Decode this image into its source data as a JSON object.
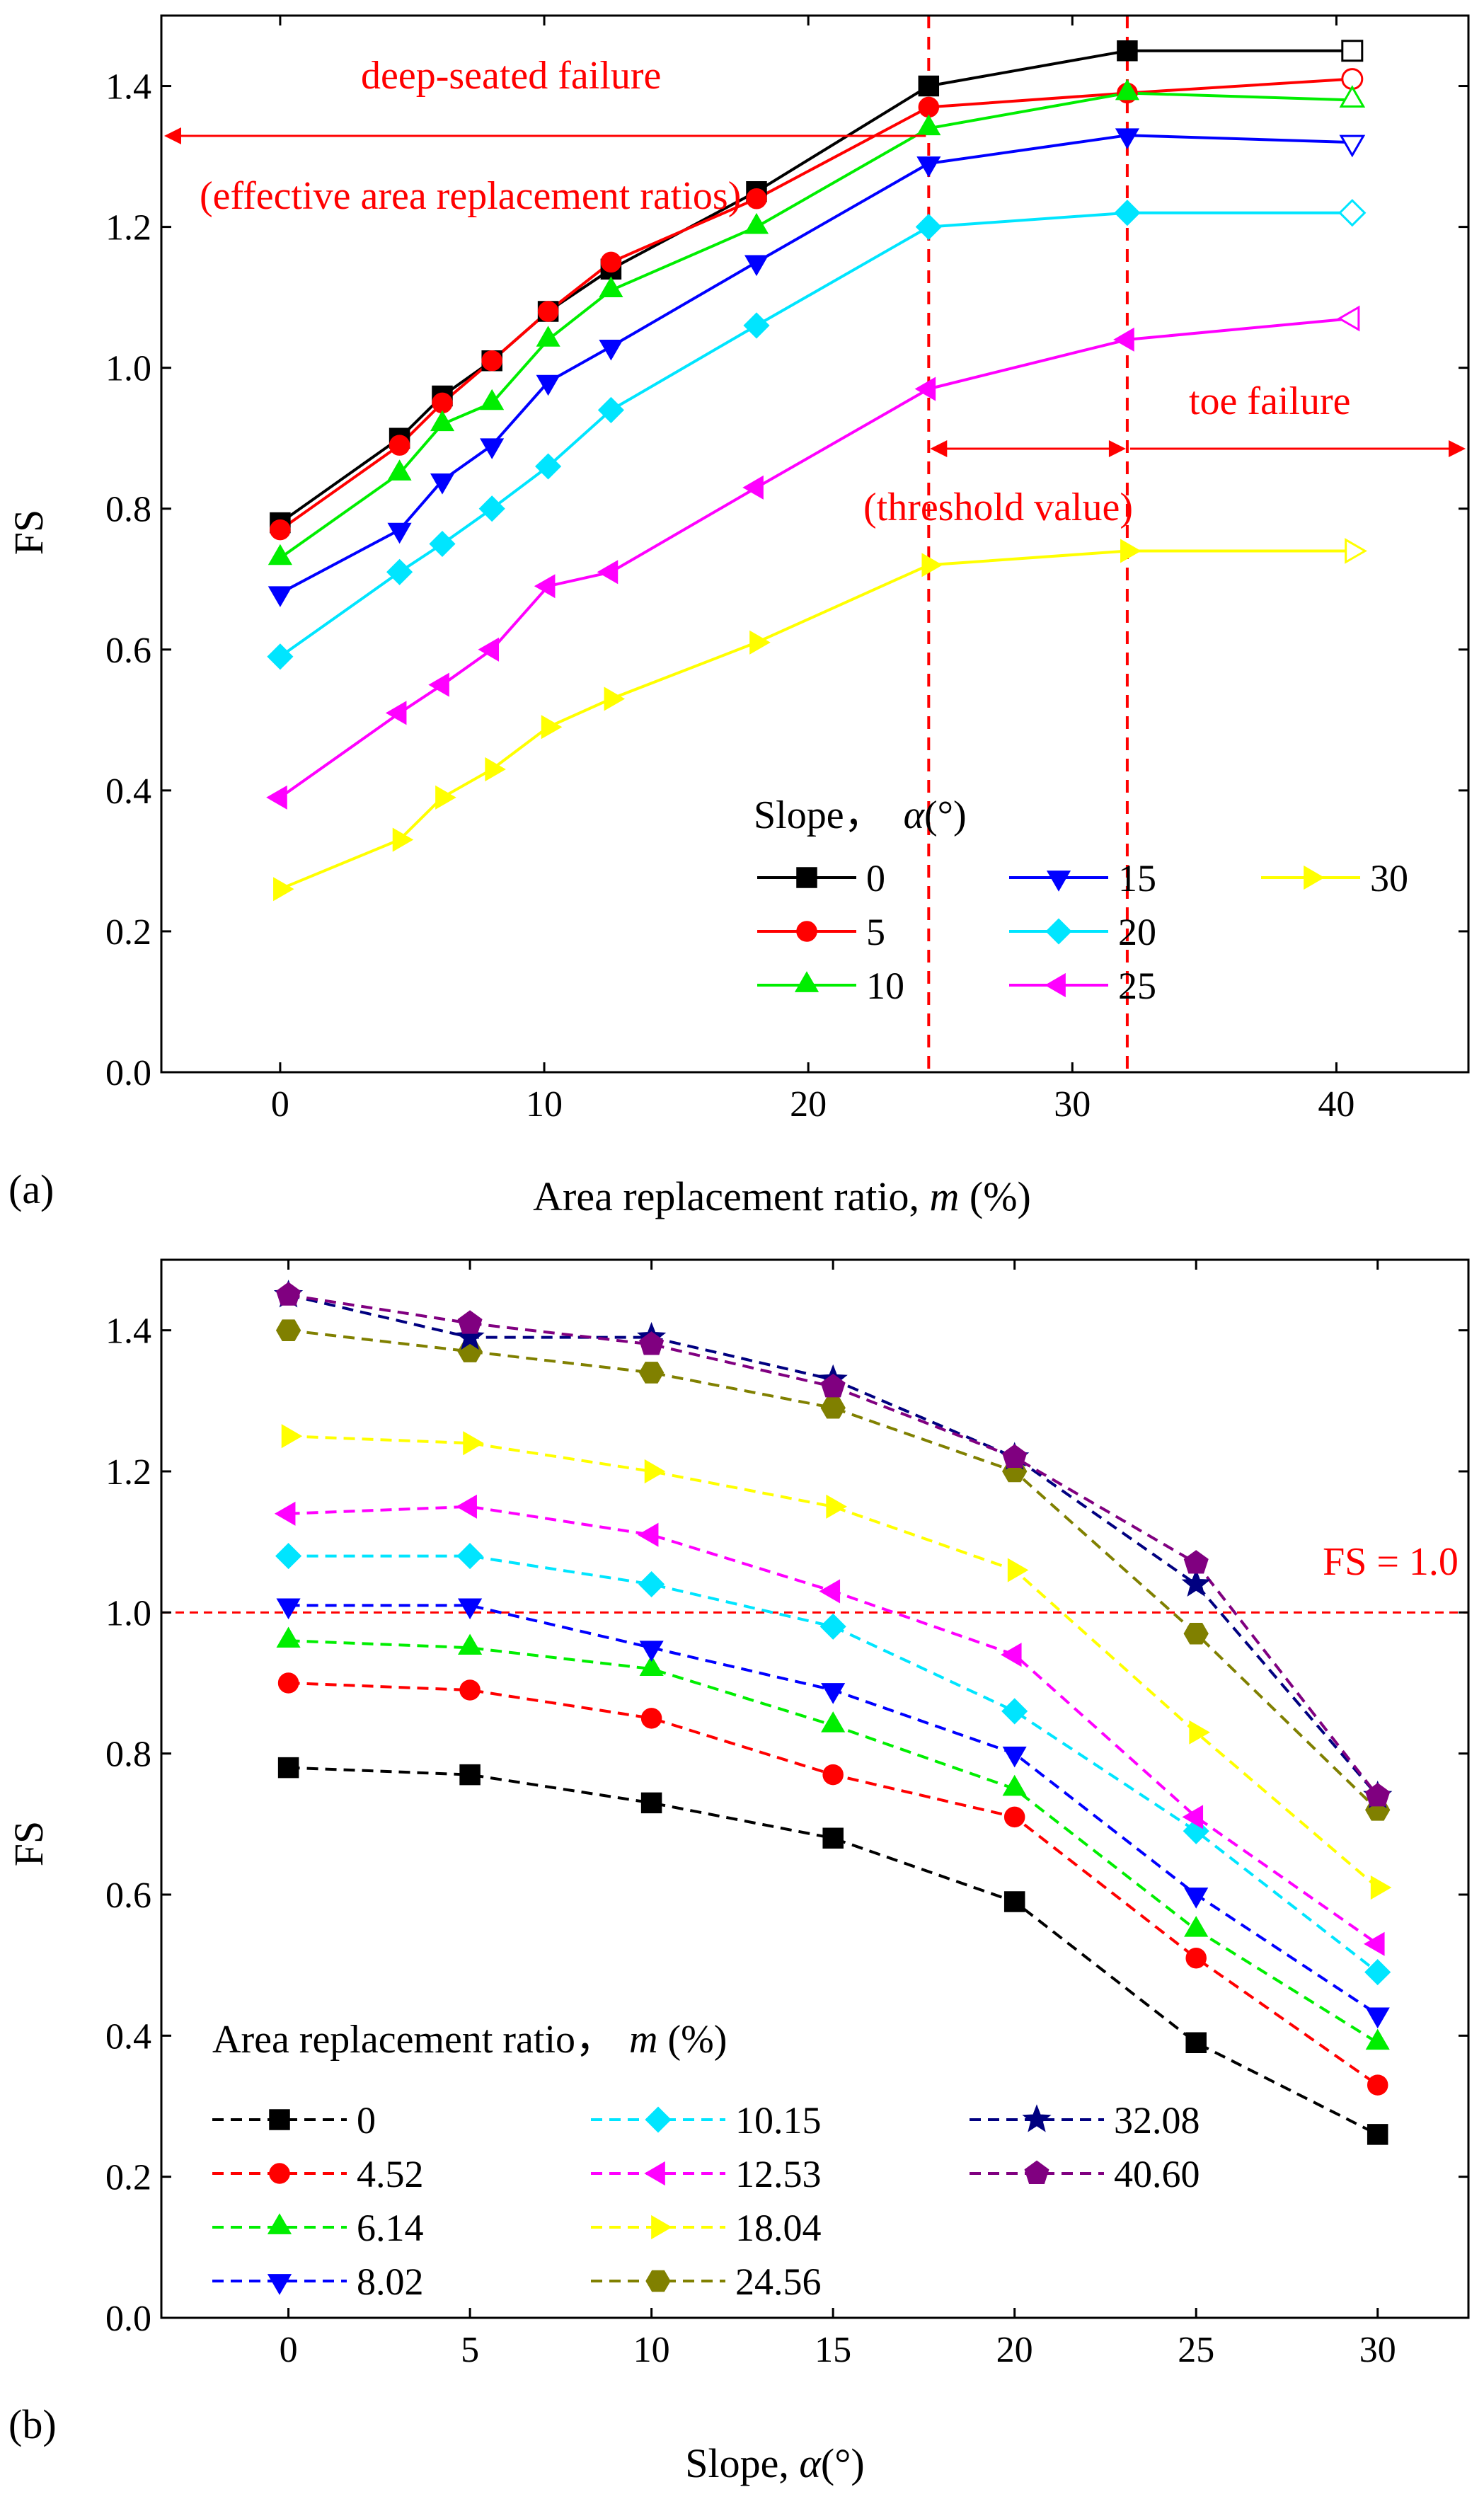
{
  "chart_data": [
    {
      "panel_label": "(a)",
      "type": "line",
      "xlabel_prefix": "Area replacement ratio, ",
      "xlabel_var": "m",
      "xlabel_suffix": " (%)",
      "ylabel": "FS",
      "xlim": [
        -4.5,
        45
      ],
      "ylim": [
        0,
        1.5
      ],
      "xticks": [
        0,
        10,
        20,
        30,
        40
      ],
      "yticks": [
        0.0,
        0.2,
        0.4,
        0.6,
        0.8,
        1.0,
        1.2,
        1.4
      ],
      "x": [
        0,
        4.52,
        6.14,
        8.02,
        10.15,
        12.53,
        18.04,
        24.56,
        32.08,
        40.6
      ],
      "legend_title_prefix": "Slope，",
      "legend_title_var": "α",
      "legend_title_suffix": "(°)",
      "series": [
        {
          "name": "0",
          "marker": "square",
          "color": "#000000",
          "values": [
            0.78,
            0.9,
            0.96,
            1.01,
            1.08,
            1.14,
            1.25,
            1.4,
            1.45,
            1.45
          ]
        },
        {
          "name": "5",
          "marker": "circle",
          "color": "#ff0000",
          "values": [
            0.77,
            0.89,
            0.95,
            1.01,
            1.08,
            1.15,
            1.24,
            1.37,
            1.39,
            1.41
          ]
        },
        {
          "name": "10",
          "marker": "triangle-up",
          "color": "#00ee00",
          "values": [
            0.73,
            0.85,
            0.92,
            0.95,
            1.04,
            1.11,
            1.2,
            1.34,
            1.39,
            1.38
          ]
        },
        {
          "name": "15",
          "marker": "triangle-down",
          "color": "#0000ff",
          "values": [
            0.68,
            0.77,
            0.84,
            0.89,
            0.98,
            1.03,
            1.15,
            1.29,
            1.33,
            1.32
          ]
        },
        {
          "name": "20",
          "marker": "diamond",
          "color": "#00e5ff",
          "values": [
            0.59,
            0.71,
            0.75,
            0.8,
            0.86,
            0.94,
            1.06,
            1.2,
            1.22,
            1.22
          ]
        },
        {
          "name": "25",
          "marker": "triangle-left",
          "color": "#ff00ff",
          "values": [
            0.39,
            0.51,
            0.55,
            0.6,
            0.69,
            0.71,
            0.83,
            0.97,
            1.04,
            1.07
          ]
        },
        {
          "name": "30",
          "marker": "triangle-right",
          "color": "#ffff00",
          "values": [
            0.26,
            0.33,
            0.39,
            0.43,
            0.49,
            0.53,
            0.61,
            0.72,
            0.74,
            0.74
          ]
        }
      ],
      "reference_lines_x": [
        24.56,
        32.08
      ],
      "annotations": {
        "deep_seated": "deep-seated failure",
        "effective": "(effective area replacement ratios)",
        "toe": "toe failure",
        "threshold": "(threshold value)"
      },
      "accent_color": "#ff0000"
    },
    {
      "panel_label": "(b)",
      "type": "line",
      "xlabel_prefix": "Slope, ",
      "xlabel_var": "α",
      "xlabel_suffix": "(°)",
      "ylabel": "FS",
      "xlim": [
        -3.5,
        32.5
      ],
      "ylim": [
        0,
        1.5
      ],
      "xticks": [
        0,
        5,
        10,
        15,
        20,
        25,
        30
      ],
      "yticks": [
        0.0,
        0.2,
        0.4,
        0.6,
        0.8,
        1.0,
        1.2,
        1.4
      ],
      "x": [
        0,
        5,
        10,
        15,
        20,
        25,
        30
      ],
      "legend_title_prefix": "Area replacement ratio，",
      "legend_title_var": "m",
      "legend_title_suffix": " (%)",
      "series": [
        {
          "name": "0",
          "marker": "square",
          "color": "#000000",
          "values": [
            0.78,
            0.77,
            0.73,
            0.68,
            0.59,
            0.39,
            0.26
          ]
        },
        {
          "name": "4.52",
          "marker": "circle",
          "color": "#ff0000",
          "values": [
            0.9,
            0.89,
            0.85,
            0.77,
            0.71,
            0.51,
            0.33
          ]
        },
        {
          "name": "6.14",
          "marker": "triangle-up",
          "color": "#00ee00",
          "values": [
            0.96,
            0.95,
            0.92,
            0.84,
            0.75,
            0.55,
            0.39
          ]
        },
        {
          "name": "8.02",
          "marker": "triangle-down",
          "color": "#0000ff",
          "values": [
            1.01,
            1.01,
            0.95,
            0.89,
            0.8,
            0.6,
            0.43
          ]
        },
        {
          "name": "10.15",
          "marker": "diamond",
          "color": "#00e5ff",
          "values": [
            1.08,
            1.08,
            1.04,
            0.98,
            0.86,
            0.69,
            0.49
          ]
        },
        {
          "name": "12.53",
          "marker": "triangle-left",
          "color": "#ff00ff",
          "values": [
            1.14,
            1.15,
            1.11,
            1.03,
            0.94,
            0.71,
            0.53
          ]
        },
        {
          "name": "18.04",
          "marker": "triangle-right",
          "color": "#ffff00",
          "values": [
            1.25,
            1.24,
            1.2,
            1.15,
            1.06,
            0.83,
            0.61
          ]
        },
        {
          "name": "24.56",
          "marker": "hexagon",
          "color": "#808000",
          "values": [
            1.4,
            1.37,
            1.34,
            1.29,
            1.2,
            0.97,
            0.72
          ]
        },
        {
          "name": "32.08",
          "marker": "star",
          "color": "#000080",
          "values": [
            1.45,
            1.39,
            1.39,
            1.33,
            1.22,
            1.04,
            0.74
          ]
        },
        {
          "name": "40.60",
          "marker": "pentagon",
          "color": "#800080",
          "values": [
            1.45,
            1.41,
            1.38,
            1.32,
            1.22,
            1.07,
            0.74
          ]
        }
      ],
      "reference_line_y": 1.0,
      "reference_label": "FS = 1.0",
      "accent_color": "#ff0000"
    }
  ]
}
